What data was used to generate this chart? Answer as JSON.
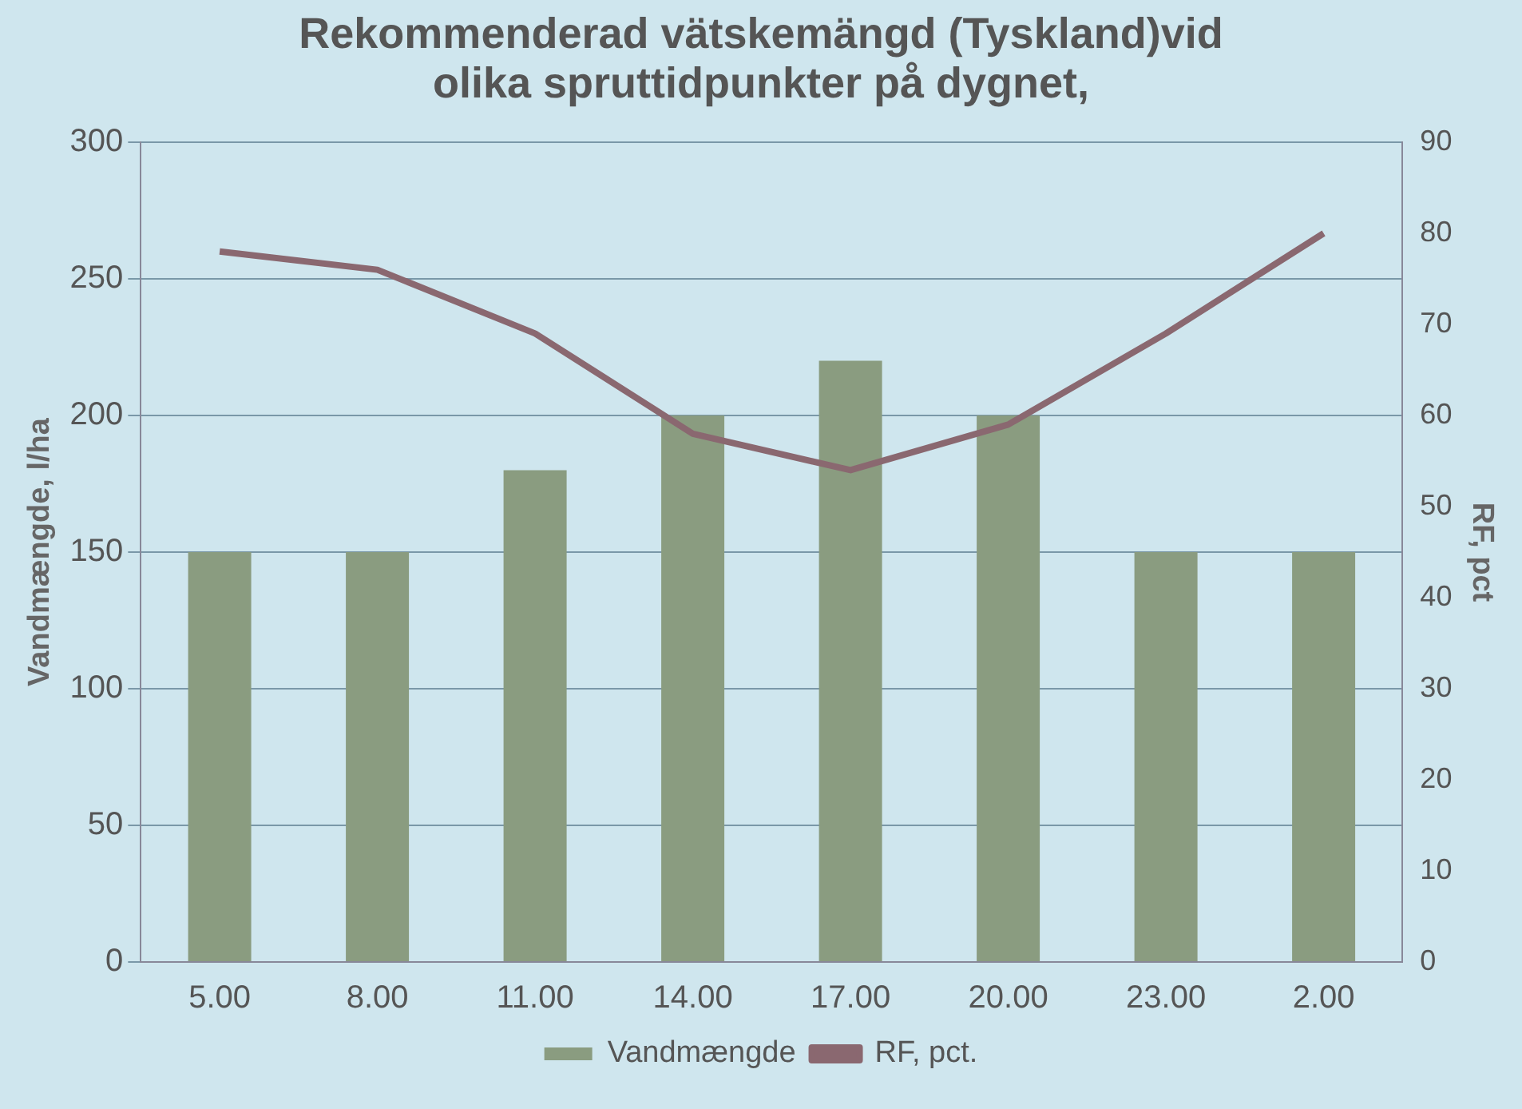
{
  "chart_data": {
    "type": "bar",
    "title": "Rekommenderad vätskemängd (Tyskland)vid olika spruttidpunkter på dygnet,",
    "ylabel": "Vandmængde, l/ha",
    "y2label": "RF, pct",
    "categories": [
      "5.00",
      "8.00",
      "11.00",
      "14.00",
      "17.00",
      "20.00",
      "23.00",
      "2.00"
    ],
    "series": [
      {
        "name": "Vandmængde",
        "color": "#8a9c80",
        "values": [
          150,
          150,
          180,
          200,
          220,
          200,
          150,
          150
        ]
      },
      {
        "name": "RF, pct.",
        "type": "line",
        "axis": "y2",
        "color": "#8a6870",
        "values": [
          78,
          76,
          69,
          58,
          54,
          59,
          69,
          80
        ]
      }
    ],
    "ylim": [
      0,
      300
    ],
    "yticks": [
      0,
      50,
      100,
      150,
      200,
      250,
      300
    ],
    "y2lim": [
      0,
      90
    ],
    "y2ticks": [
      0,
      10,
      20,
      30,
      40,
      50,
      60,
      70,
      80,
      90
    ],
    "grid": "y",
    "legend": "bottom",
    "marker": "none"
  }
}
